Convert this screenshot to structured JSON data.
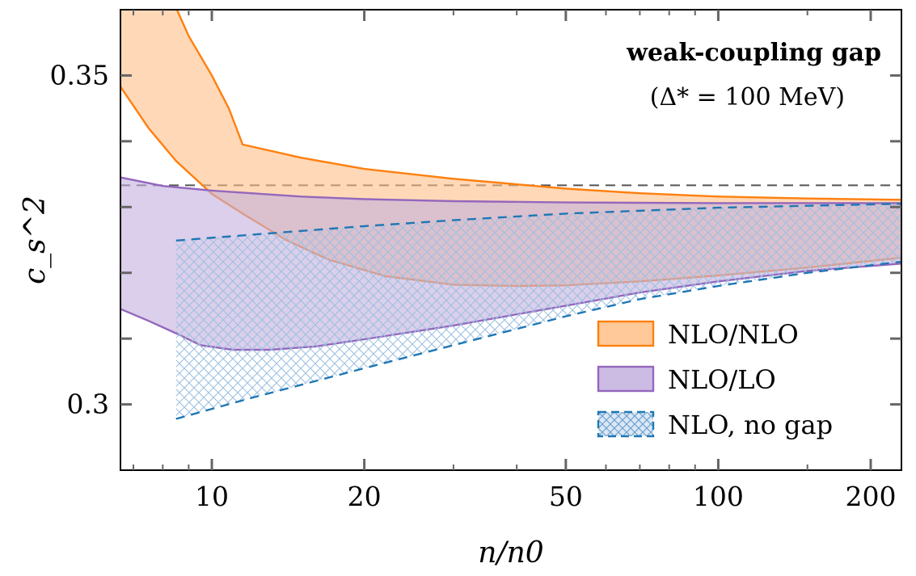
{
  "chart_data": {
    "type": "area",
    "x_scale": "log",
    "xlabel": "n/n0",
    "ylabel": "c_s^2",
    "xlim": [
      6.6,
      230
    ],
    "ylim": [
      0.29,
      0.36
    ],
    "x_ticks": [
      {
        "value": 10,
        "label": "10"
      },
      {
        "value": 20,
        "label": "20"
      },
      {
        "value": 50,
        "label": "50"
      },
      {
        "value": 100,
        "label": "100"
      },
      {
        "value": 200,
        "label": "200"
      }
    ],
    "y_ticks": [
      {
        "value": 0.3,
        "label": "0.3"
      },
      {
        "value": 0.35,
        "label": "0.35"
      }
    ],
    "y_minor_ticks": [
      0.31,
      0.32,
      0.33,
      0.34
    ],
    "annotation": {
      "title": "weak-coupling gap",
      "subtitle": "(Δ* = 100 MeV)"
    },
    "reference_line": {
      "y": 0.3333,
      "style": "dashed",
      "color": "#555555"
    },
    "legend_position": "lower-right",
    "series": [
      {
        "name": "NLO/NLO",
        "style": "band",
        "color": "#ff7f0e",
        "fill": "#ffbf87",
        "fill_opacity": 0.6,
        "upper": [
          [
            6.6,
            0.389
          ],
          [
            7.4,
            0.374
          ],
          [
            8.2,
            0.363
          ],
          [
            9.0,
            0.356
          ],
          [
            10.0,
            0.35
          ],
          [
            10.8,
            0.345
          ],
          [
            11.5,
            0.3395
          ],
          [
            15,
            0.3375
          ],
          [
            20,
            0.3358
          ],
          [
            30,
            0.3343
          ],
          [
            50,
            0.3328
          ],
          [
            70,
            0.3321
          ],
          [
            100,
            0.3316
          ],
          [
            150,
            0.3313
          ],
          [
            230,
            0.3311
          ]
        ],
        "lower": [
          [
            6.6,
            0.3483
          ],
          [
            7.5,
            0.342
          ],
          [
            8.5,
            0.337
          ],
          [
            10.0,
            0.332
          ],
          [
            11.5,
            0.329
          ],
          [
            14,
            0.325
          ],
          [
            17,
            0.322
          ],
          [
            22,
            0.3195
          ],
          [
            30,
            0.3182
          ],
          [
            40,
            0.318
          ],
          [
            50,
            0.3181
          ],
          [
            70,
            0.3187
          ],
          [
            100,
            0.3196
          ],
          [
            150,
            0.3208
          ],
          [
            230,
            0.3223
          ]
        ]
      },
      {
        "name": "NLO/LO",
        "style": "band",
        "color": "#9467bd",
        "fill": "#c3afde",
        "fill_opacity": 0.6,
        "upper": [
          [
            6.6,
            0.3345
          ],
          [
            8,
            0.3332
          ],
          [
            10,
            0.3325
          ],
          [
            15,
            0.3316
          ],
          [
            20,
            0.3312
          ],
          [
            30,
            0.3309
          ],
          [
            50,
            0.3307
          ],
          [
            100,
            0.3306
          ],
          [
            230,
            0.3306
          ]
        ],
        "lower": [
          [
            6.6,
            0.3145
          ],
          [
            7.5,
            0.3127
          ],
          [
            8.5,
            0.3108
          ],
          [
            9.5,
            0.309
          ],
          [
            11,
            0.3083
          ],
          [
            13,
            0.3083
          ],
          [
            16,
            0.3088
          ],
          [
            20,
            0.3099
          ],
          [
            30,
            0.312
          ],
          [
            50,
            0.315
          ],
          [
            70,
            0.317
          ],
          [
            100,
            0.3187
          ],
          [
            150,
            0.3203
          ],
          [
            230,
            0.3214
          ]
        ]
      },
      {
        "name": "NLO, no gap",
        "style": "hatched-band",
        "color": "#1f77b4",
        "fill": "#aec7e8",
        "upper": [
          [
            8.5,
            0.3249
          ],
          [
            12,
            0.3258
          ],
          [
            20,
            0.3271
          ],
          [
            30,
            0.328
          ],
          [
            50,
            0.329
          ],
          [
            100,
            0.3299
          ],
          [
            150,
            0.3302
          ],
          [
            230,
            0.3305
          ]
        ],
        "lower": [
          [
            8.5,
            0.2978
          ],
          [
            12,
            0.301
          ],
          [
            20,
            0.3055
          ],
          [
            30,
            0.309
          ],
          [
            50,
            0.3134
          ],
          [
            70,
            0.316
          ],
          [
            100,
            0.318
          ],
          [
            150,
            0.32
          ],
          [
            230,
            0.3217
          ]
        ]
      }
    ]
  }
}
